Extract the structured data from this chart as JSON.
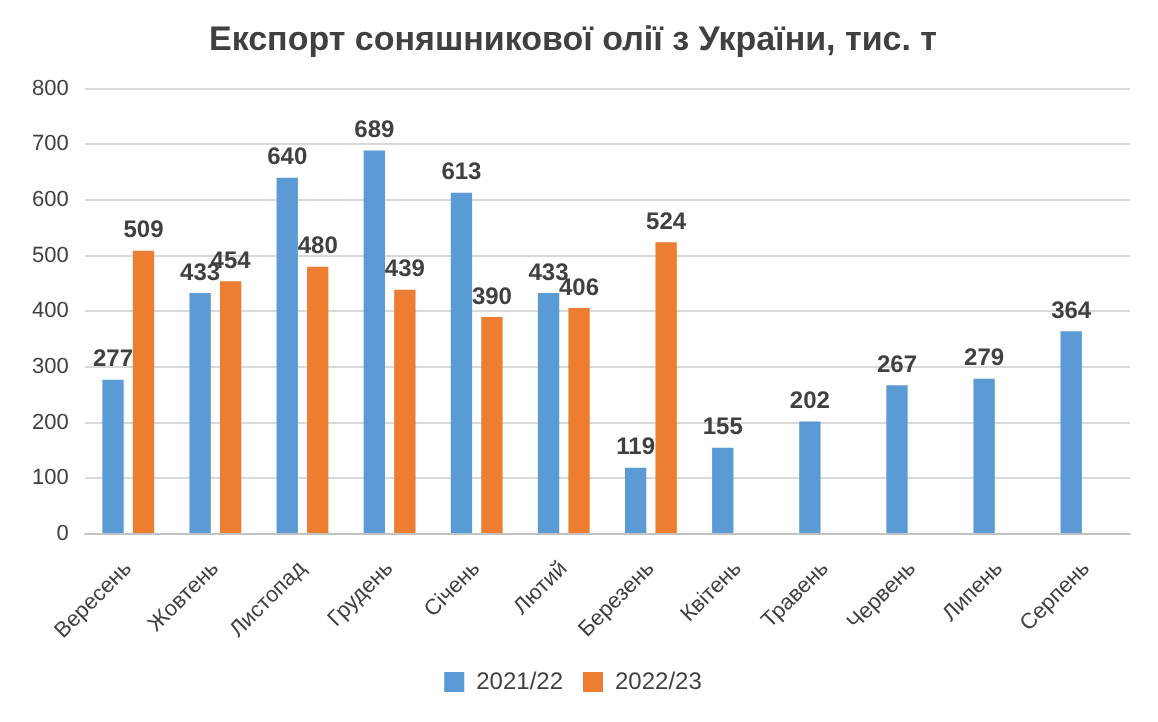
{
  "chart_data": {
    "type": "bar",
    "title": "Експорт соняшникової олії з України, тис. т",
    "categories": [
      "Вересень",
      "Жовтень",
      "Листопад",
      "Грудень",
      "Січень",
      "Лютий",
      "Березень",
      "Квітень",
      "Травень",
      "Червень",
      "Липень",
      "Серпень"
    ],
    "series": [
      {
        "name": "2021/22",
        "color": "#5b9bd5",
        "values": [
          277,
          433,
          640,
          689,
          613,
          433,
          119,
          155,
          202,
          267,
          279,
          364
        ]
      },
      {
        "name": "2022/23",
        "color": "#ed7d31",
        "values": [
          509,
          454,
          480,
          439,
          390,
          406,
          524,
          null,
          null,
          null,
          null,
          null
        ]
      }
    ],
    "ylim": [
      0,
      800
    ],
    "yticks": [
      0,
      100,
      200,
      300,
      400,
      500,
      600,
      700,
      800
    ],
    "grid": "y",
    "legend": "bottom",
    "data_labels": true
  }
}
